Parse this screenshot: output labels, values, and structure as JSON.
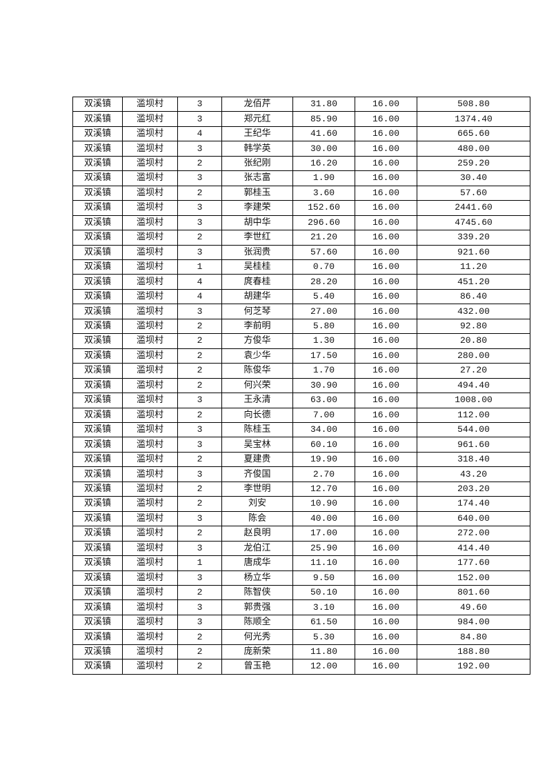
{
  "rows": [
    [
      "双溪镇",
      "滥坝村",
      "3",
      "龙佰芹",
      "31.80",
      "16.00",
      "508.80"
    ],
    [
      "双溪镇",
      "滥坝村",
      "3",
      "郑元红",
      "85.90",
      "16.00",
      "1374.40"
    ],
    [
      "双溪镇",
      "滥坝村",
      "4",
      "王纪华",
      "41.60",
      "16.00",
      "665.60"
    ],
    [
      "双溪镇",
      "滥坝村",
      "3",
      "韩学英",
      "30.00",
      "16.00",
      "480.00"
    ],
    [
      "双溪镇",
      "滥坝村",
      "2",
      "张纪刚",
      "16.20",
      "16.00",
      "259.20"
    ],
    [
      "双溪镇",
      "滥坝村",
      "3",
      "张志富",
      "1.90",
      "16.00",
      "30.40"
    ],
    [
      "双溪镇",
      "滥坝村",
      "2",
      "郭桂玉",
      "3.60",
      "16.00",
      "57.60"
    ],
    [
      "双溪镇",
      "滥坝村",
      "3",
      "李建荣",
      "152.60",
      "16.00",
      "2441.60"
    ],
    [
      "双溪镇",
      "滥坝村",
      "3",
      "胡中华",
      "296.60",
      "16.00",
      "4745.60"
    ],
    [
      "双溪镇",
      "滥坝村",
      "2",
      "李世红",
      "21.20",
      "16.00",
      "339.20"
    ],
    [
      "双溪镇",
      "滥坝村",
      "3",
      "张润贵",
      "57.60",
      "16.00",
      "921.60"
    ],
    [
      "双溪镇",
      "滥坝村",
      "1",
      "吴桂桂",
      "0.70",
      "16.00",
      "11.20"
    ],
    [
      "双溪镇",
      "滥坝村",
      "4",
      "庹春桂",
      "28.20",
      "16.00",
      "451.20"
    ],
    [
      "双溪镇",
      "滥坝村",
      "4",
      "胡建华",
      "5.40",
      "16.00",
      "86.40"
    ],
    [
      "双溪镇",
      "滥坝村",
      "3",
      "何芝琴",
      "27.00",
      "16.00",
      "432.00"
    ],
    [
      "双溪镇",
      "滥坝村",
      "2",
      "李前明",
      "5.80",
      "16.00",
      "92.80"
    ],
    [
      "双溪镇",
      "滥坝村",
      "2",
      "方俊华",
      "1.30",
      "16.00",
      "20.80"
    ],
    [
      "双溪镇",
      "滥坝村",
      "2",
      "袁少华",
      "17.50",
      "16.00",
      "280.00"
    ],
    [
      "双溪镇",
      "滥坝村",
      "2",
      "陈俊华",
      "1.70",
      "16.00",
      "27.20"
    ],
    [
      "双溪镇",
      "滥坝村",
      "2",
      "何兴荣",
      "30.90",
      "16.00",
      "494.40"
    ],
    [
      "双溪镇",
      "滥坝村",
      "3",
      "王永清",
      "63.00",
      "16.00",
      "1008.00"
    ],
    [
      "双溪镇",
      "滥坝村",
      "2",
      "向长德",
      "7.00",
      "16.00",
      "112.00"
    ],
    [
      "双溪镇",
      "滥坝村",
      "3",
      "陈桂玉",
      "34.00",
      "16.00",
      "544.00"
    ],
    [
      "双溪镇",
      "滥坝村",
      "3",
      "吴宝林",
      "60.10",
      "16.00",
      "961.60"
    ],
    [
      "双溪镇",
      "滥坝村",
      "2",
      "夏建贵",
      "19.90",
      "16.00",
      "318.40"
    ],
    [
      "双溪镇",
      "滥坝村",
      "3",
      "齐俊国",
      "2.70",
      "16.00",
      "43.20"
    ],
    [
      "双溪镇",
      "滥坝村",
      "2",
      "李世明",
      "12.70",
      "16.00",
      "203.20"
    ],
    [
      "双溪镇",
      "滥坝村",
      "2",
      "刘安",
      "10.90",
      "16.00",
      "174.40"
    ],
    [
      "双溪镇",
      "滥坝村",
      "3",
      "陈会",
      "40.00",
      "16.00",
      "640.00"
    ],
    [
      "双溪镇",
      "滥坝村",
      "2",
      "赵良明",
      "17.00",
      "16.00",
      "272.00"
    ],
    [
      "双溪镇",
      "滥坝村",
      "3",
      "龙伯江",
      "25.90",
      "16.00",
      "414.40"
    ],
    [
      "双溪镇",
      "滥坝村",
      "1",
      "唐成华",
      "11.10",
      "16.00",
      "177.60"
    ],
    [
      "双溪镇",
      "滥坝村",
      "3",
      "杨立华",
      "9.50",
      "16.00",
      "152.00"
    ],
    [
      "双溪镇",
      "滥坝村",
      "2",
      "陈智侠",
      "50.10",
      "16.00",
      "801.60"
    ],
    [
      "双溪镇",
      "滥坝村",
      "3",
      "郭贵强",
      "3.10",
      "16.00",
      "49.60"
    ],
    [
      "双溪镇",
      "滥坝村",
      "3",
      "陈顺全",
      "61.50",
      "16.00",
      "984.00"
    ],
    [
      "双溪镇",
      "滥坝村",
      "2",
      "何光秀",
      "5.30",
      "16.00",
      "84.80"
    ],
    [
      "双溪镇",
      "滥坝村",
      "2",
      "庞新荣",
      "11.80",
      "16.00",
      "188.80"
    ],
    [
      "双溪镇",
      "滥坝村",
      "2",
      "曾玉艳",
      "12.00",
      "16.00",
      "192.00"
    ]
  ]
}
